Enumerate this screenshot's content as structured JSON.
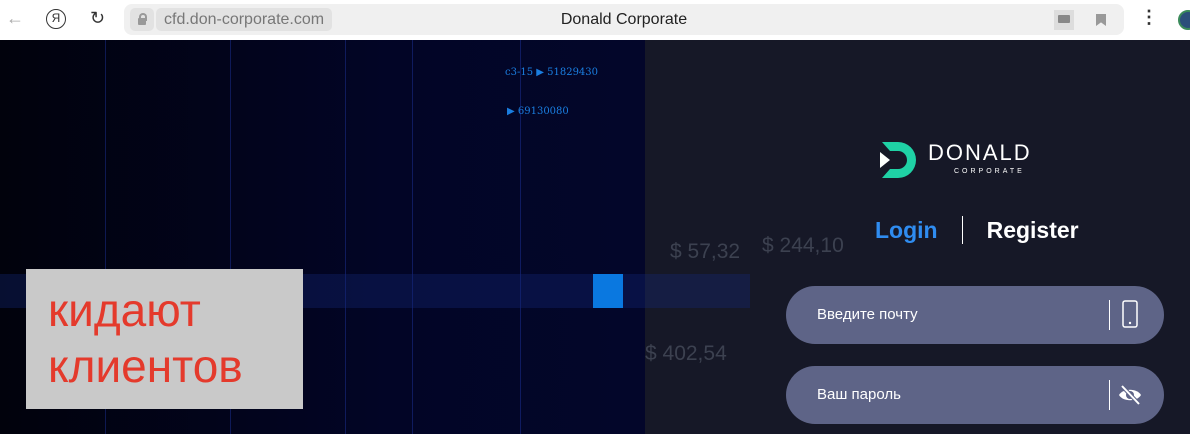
{
  "browser": {
    "url": "cfd.don-corporate.com",
    "title": "Donald Corporate"
  },
  "background": {
    "codes": [
      "c3-15 ▶ 51829430",
      "▶ 69130080"
    ],
    "prices": [
      "$ 57,32",
      "$ 244,10",
      "$ 402,54"
    ]
  },
  "logo": {
    "name": "DONALD",
    "sub": "CORPORATE",
    "color": "#1fd1a5"
  },
  "auth": {
    "login_tab": "Login",
    "register_tab": "Register",
    "active_color": "#2f8cf0"
  },
  "form": {
    "email_placeholder": "Введите почту",
    "password_placeholder": "Ваш пароль"
  },
  "overlay": {
    "line1": "кидают",
    "line2": "клиентов"
  }
}
